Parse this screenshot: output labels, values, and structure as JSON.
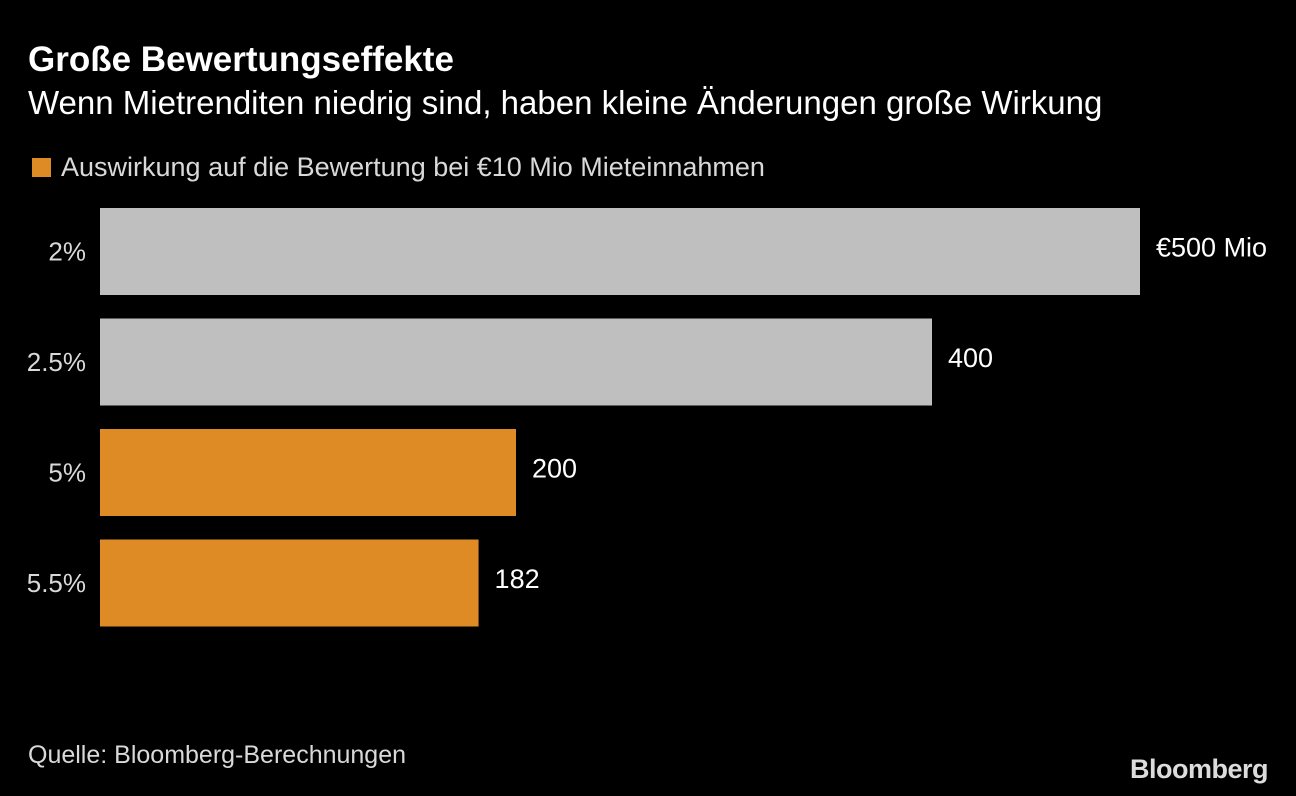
{
  "header": {
    "title": "Große Bewertungseffekte",
    "subtitle": "Wenn Mietrenditen niedrig sind, haben kleine Änderungen große Wirkung"
  },
  "legend": {
    "label": "Auswirkung auf die Bewertung bei €10 Mio Mieteinnahmen",
    "color": "#DE8A25"
  },
  "colors": {
    "background": "#000000",
    "highlight": "#DE8A25",
    "neutral": "#BFBFBF",
    "text": "#FFFFFF",
    "muted_text": "#D9D9D9"
  },
  "chart_data": {
    "type": "bar",
    "orientation": "horizontal",
    "categories": [
      "2%",
      "2.5%",
      "5%",
      "5.5%"
    ],
    "values": [
      500,
      400,
      200,
      182
    ],
    "value_labels": [
      "€500 Mio",
      "400",
      "200",
      "182"
    ],
    "bar_colors": [
      "#BFBFBF",
      "#BFBFBF",
      "#DE8A25",
      "#DE8A25"
    ],
    "xlim": [
      0,
      500
    ],
    "grid": false
  },
  "footer": {
    "source": "Quelle: Bloomberg-Berechnungen",
    "logo": "Bloomberg"
  }
}
